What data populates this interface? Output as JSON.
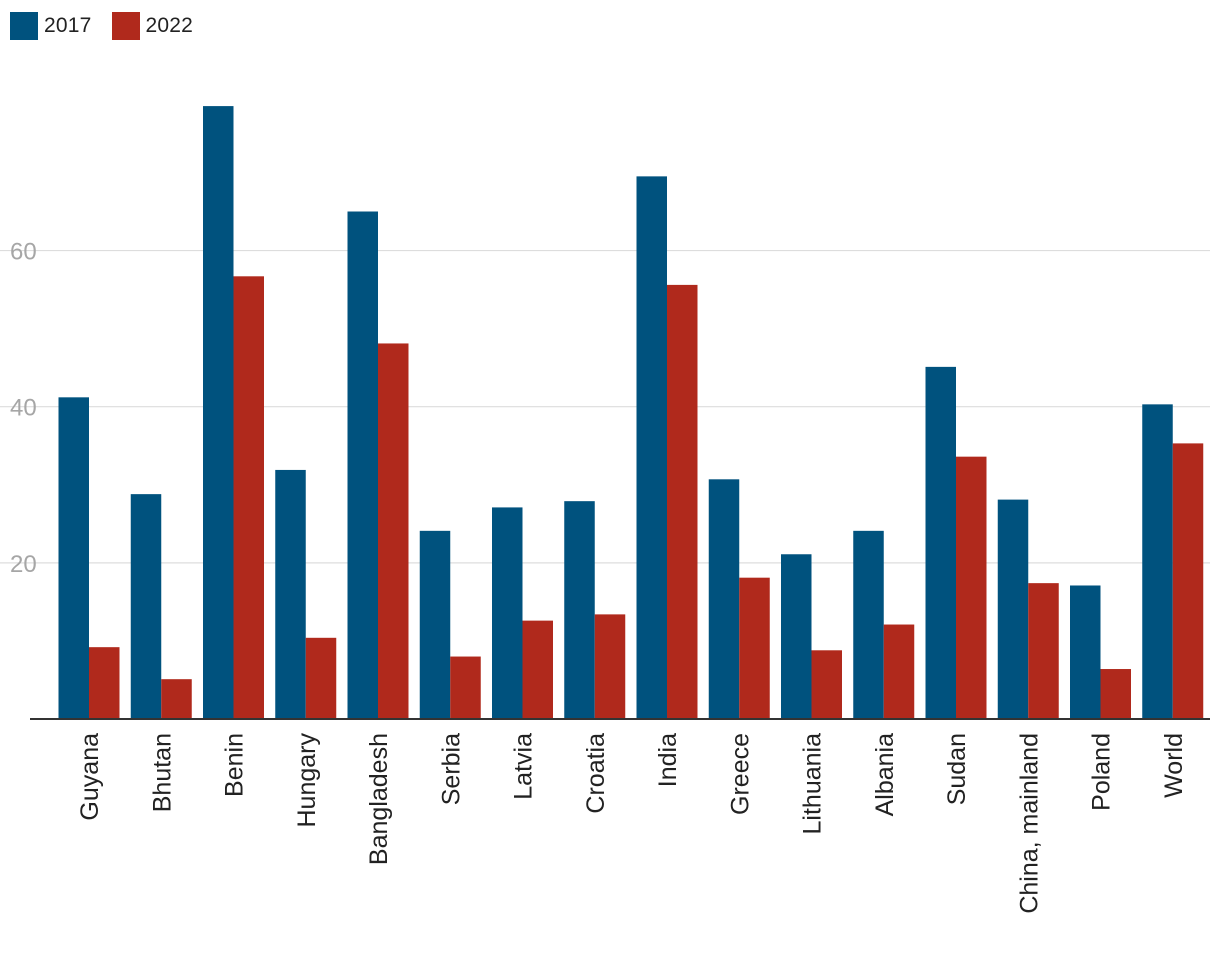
{
  "colors": {
    "series_2017": "#00527e",
    "series_2022": "#b0291c",
    "grid": "#dddddd",
    "axis": "#333333",
    "tick_text": "#a6a6a6"
  },
  "legend": {
    "items": [
      {
        "label": "2017"
      },
      {
        "label": "2022"
      }
    ],
    "placement": "top-left"
  },
  "chart_data": {
    "type": "bar",
    "title": "",
    "xlabel": "",
    "ylabel": "",
    "ylim": [
      0,
      78
    ],
    "yticks": [
      20,
      40,
      60
    ],
    "grid": true,
    "categories": [
      "Guyana",
      "Bhutan",
      "Benin",
      "Hungary",
      "Bangladesh",
      "Serbia",
      "Latvia",
      "Croatia",
      "India",
      "Greece",
      "Lithuania",
      "Albania",
      "Sudan",
      "China, mainland",
      "Poland",
      "World"
    ],
    "series": [
      {
        "name": "2017",
        "values": [
          41.2,
          28.8,
          78.5,
          31.9,
          65.0,
          24.1,
          27.1,
          27.9,
          69.5,
          30.7,
          21.1,
          24.1,
          45.1,
          28.1,
          17.1,
          40.3
        ]
      },
      {
        "name": "2022",
        "values": [
          9.2,
          5.1,
          56.7,
          10.4,
          48.1,
          8.0,
          12.6,
          13.4,
          55.6,
          18.1,
          8.8,
          12.1,
          33.6,
          17.4,
          6.4,
          35.3
        ]
      }
    ]
  }
}
